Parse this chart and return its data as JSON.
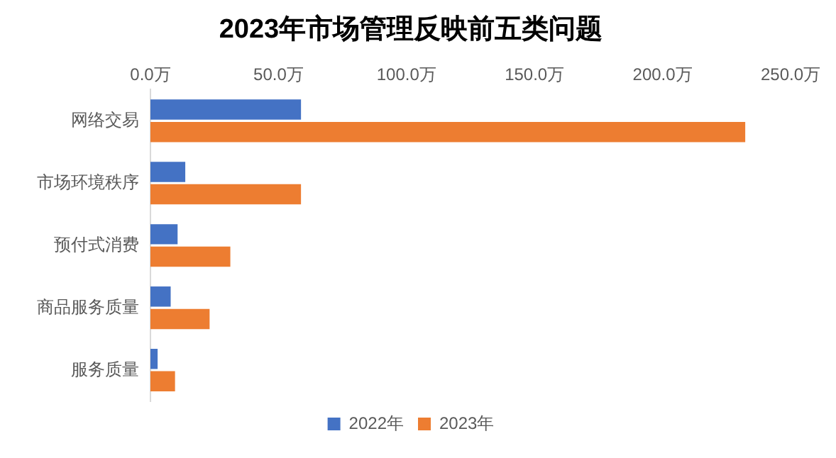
{
  "chart_data": {
    "type": "bar",
    "orientation": "horizontal",
    "title": "2023年市场管理反映前五类问题",
    "categories": [
      "网络交易",
      "市场环境秩序",
      "预付式消费",
      "商品服务质量",
      "服务质量"
    ],
    "series": [
      {
        "name": "2022年",
        "color": "#4472c4",
        "values": [
          58.8,
          13.6,
          10.6,
          7.9,
          2.8
        ]
      },
      {
        "name": "2023年",
        "color": "#ed7d31",
        "values": [
          232.3,
          58.8,
          31.2,
          23.1,
          9.6
        ]
      }
    ],
    "xlim": [
      0,
      250
    ],
    "xticks": [
      {
        "value": 0,
        "label": "0.0万"
      },
      {
        "value": 50,
        "label": "50.0万"
      },
      {
        "value": 100,
        "label": "100.0万"
      },
      {
        "value": 150,
        "label": "150.0万"
      },
      {
        "value": 200,
        "label": "200.0万"
      },
      {
        "value": 250,
        "label": "250.0万"
      }
    ],
    "grid": false,
    "legend": "bottom"
  }
}
